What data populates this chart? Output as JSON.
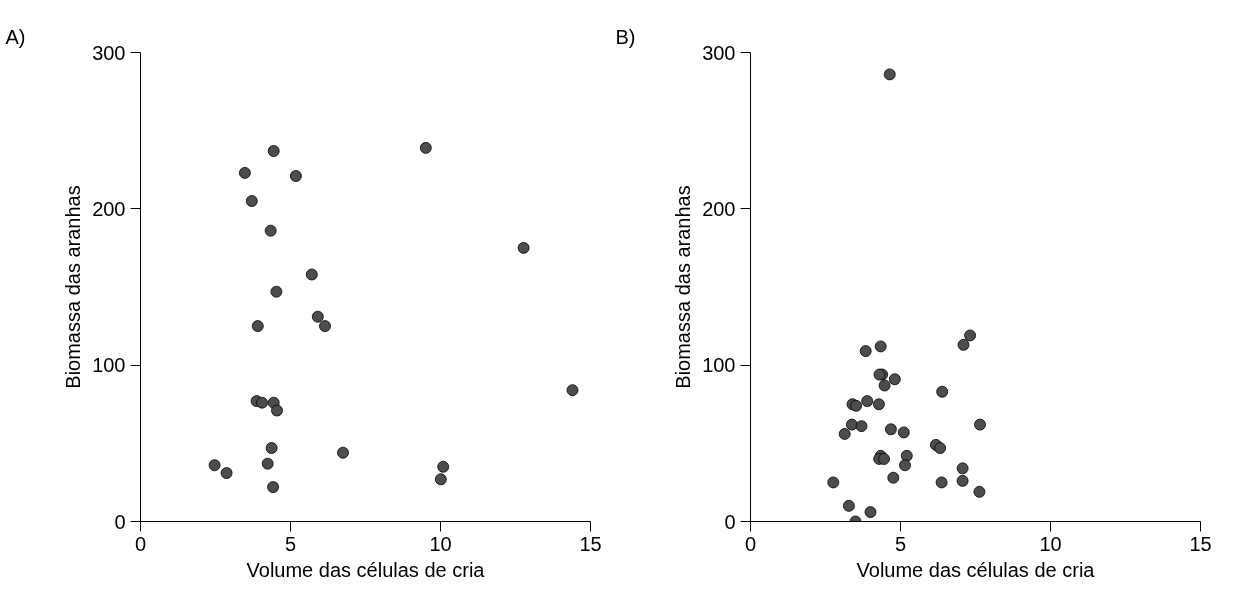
{
  "chart_data": [
    {
      "type": "scatter",
      "title": "A)",
      "xlabel": "Volume das células de cria",
      "ylabel": "Biomassa das aranhas",
      "xlim": [
        0,
        15
      ],
      "ylim": [
        0,
        300
      ],
      "xticks": [
        0,
        5,
        10,
        15
      ],
      "yticks": [
        0,
        100,
        200,
        300
      ],
      "marker": "circle",
      "series": [
        {
          "color": "#4d4d4d",
          "x": [
            4.44,
            9.51,
            3.48,
            5.18,
            3.71,
            4.34,
            12.77,
            5.71,
            4.53,
            5.91,
            3.91,
            6.15,
            14.4,
            3.87,
            4.05,
            4.44,
            4.55,
            4.37,
            6.75,
            2.47,
            4.24,
            10.09,
            2.87,
            10.01,
            4.42
          ],
          "values": [
            237,
            239,
            223,
            221,
            205,
            186,
            175,
            158,
            147,
            131,
            125,
            125,
            84,
            77,
            76,
            76,
            71,
            47,
            44,
            36,
            37,
            35,
            31,
            27,
            22
          ]
        }
      ]
    },
    {
      "type": "scatter",
      "title": "B)",
      "xlabel": "Volume das células de cria",
      "ylabel": "Biomassa das aranhas",
      "xlim": [
        0,
        15
      ],
      "ylim": [
        0,
        300
      ],
      "xticks": [
        0,
        5,
        10,
        15
      ],
      "yticks": [
        0,
        100,
        200,
        300
      ],
      "marker": "circle",
      "series": [
        {
          "color": "#4d4d4d",
          "x": [
            4.64,
            7.32,
            7.1,
            4.34,
            3.84,
            4.39,
            4.3,
            4.81,
            4.47,
            6.39,
            3.89,
            3.4,
            3.52,
            4.28,
            3.38,
            7.65,
            3.7,
            4.68,
            3.14,
            5.11,
            6.18,
            6.32,
            4.34,
            5.21,
            4.29,
            4.45,
            5.15,
            7.07,
            4.76,
            2.76,
            6.37,
            7.07,
            7.63,
            3.28,
            4.0,
            3.5
          ],
          "values": [
            286,
            119,
            113,
            112,
            109,
            94,
            94,
            91,
            87,
            83,
            77,
            75,
            74,
            75,
            62,
            62,
            61,
            59,
            56,
            57,
            49,
            47,
            42,
            42,
            40,
            40,
            36,
            34,
            28,
            25,
            25,
            26,
            19,
            10,
            6,
            0
          ]
        }
      ]
    }
  ]
}
